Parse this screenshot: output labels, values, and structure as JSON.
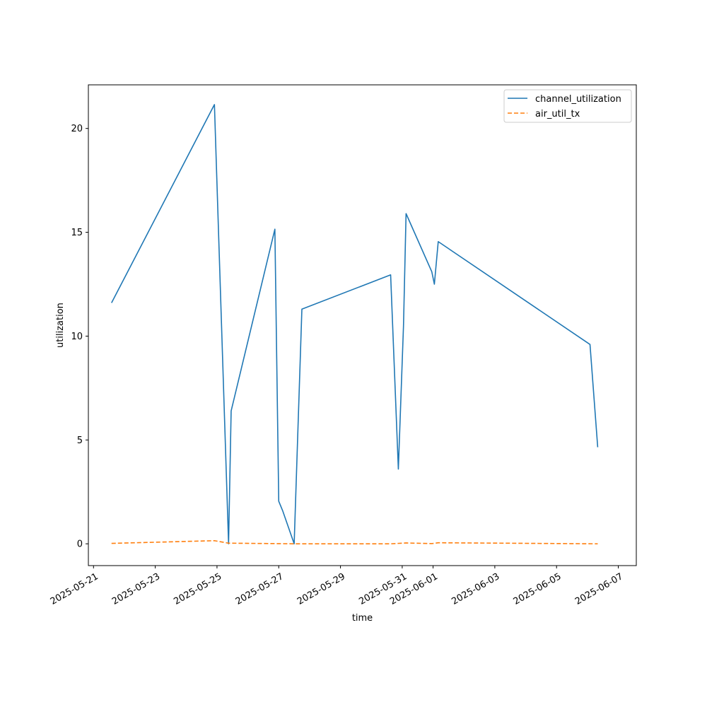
{
  "chart_data": {
    "type": "line",
    "xlabel": "time",
    "ylabel": "utilization",
    "x_axis_type": "date",
    "xlim": [
      "2025-05-20T20:00",
      "2025-06-07T14:00"
    ],
    "ylim": [
      -1.05,
      22.1
    ],
    "x_ticks": [
      "2025-05-21",
      "2025-05-23",
      "2025-05-25",
      "2025-05-27",
      "2025-05-29",
      "2025-05-31",
      "2025-06-01",
      "2025-06-03",
      "2025-06-05",
      "2025-06-07"
    ],
    "y_ticks": [
      0,
      5,
      10,
      15,
      20
    ],
    "grid": false,
    "legend_position": "top-right",
    "series": [
      {
        "name": "channel_utilization",
        "color": "#1f77b4",
        "style": "solid",
        "points": [
          [
            "2025-05-21T14:00",
            11.6
          ],
          [
            "2025-05-24T22:00",
            21.15
          ],
          [
            "2025-05-25T09:00",
            0.0
          ],
          [
            "2025-05-25T11:00",
            6.4
          ],
          [
            "2025-05-26T21:00",
            15.15
          ],
          [
            "2025-05-27T00:00",
            2.05
          ],
          [
            "2025-05-27T03:00",
            1.6
          ],
          [
            "2025-05-27T12:00",
            0.0
          ],
          [
            "2025-05-27T18:00",
            11.3
          ],
          [
            "2025-05-30T15:00",
            12.95
          ],
          [
            "2025-05-30T21:00",
            3.6
          ],
          [
            "2025-05-31T01:00",
            10.5
          ],
          [
            "2025-05-31T03:00",
            15.9
          ],
          [
            "2025-05-31T23:00",
            13.1
          ],
          [
            "2025-06-01T01:00",
            12.5
          ],
          [
            "2025-06-01T04:00",
            14.55
          ],
          [
            "2025-06-06T02:00",
            9.6
          ],
          [
            "2025-06-06T08:00",
            4.65
          ]
        ]
      },
      {
        "name": "air_util_tx",
        "color": "#ff7f0e",
        "style": "dashed",
        "points": [
          [
            "2025-05-21T14:00",
            0.02
          ],
          [
            "2025-05-24T22:00",
            0.15
          ],
          [
            "2025-05-25T09:00",
            0.03
          ],
          [
            "2025-05-26T21:00",
            0.01
          ],
          [
            "2025-05-27T12:00",
            0.0
          ],
          [
            "2025-05-30T15:00",
            0.0
          ],
          [
            "2025-05-31T03:00",
            0.04
          ],
          [
            "2025-05-31T23:00",
            0.01
          ],
          [
            "2025-06-01T04:00",
            0.05
          ],
          [
            "2025-06-06T08:00",
            0.0
          ]
        ]
      }
    ]
  }
}
